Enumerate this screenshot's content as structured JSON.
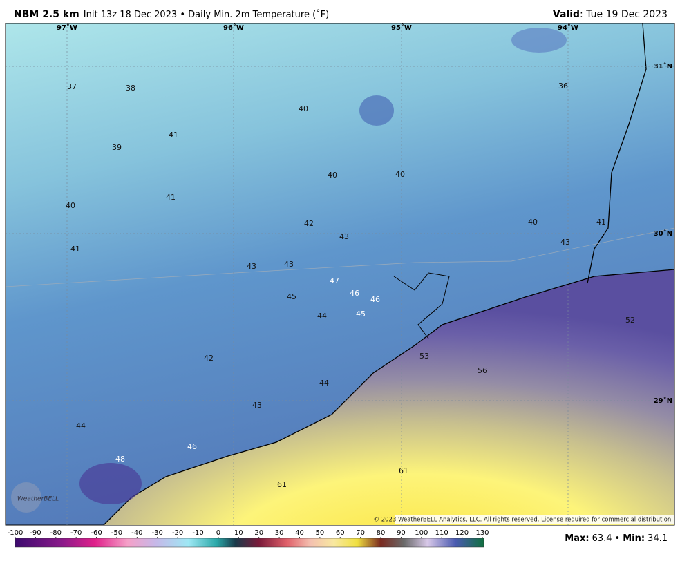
{
  "header": {
    "title": "NBM 2.5 km",
    "subtitle": "Init 13z 18 Dec 2023 • Daily Min. 2m Temperature (˚F)",
    "valid_label": "Valid",
    "valid": ": Tue 19 Dec 2023"
  },
  "map": {
    "lon_labels": [
      "97˚W",
      "96˚W",
      "95˚W",
      "94˚W"
    ],
    "lat_labels": [
      "31˚N",
      "30˚N",
      "29˚N"
    ],
    "points": [
      37,
      38,
      40,
      36,
      41,
      39,
      40,
      40,
      41,
      40,
      42,
      43,
      40,
      41,
      43,
      41,
      43,
      43,
      47,
      46,
      46,
      45,
      44,
      45,
      52,
      42,
      53,
      56,
      44,
      43,
      44,
      46,
      48,
      61,
      61
    ],
    "copyright": "© 2023 WeatherBELL Analytics, LLC. All rights reserved. License required for commercial distribution.",
    "logo": "WeatherBELL"
  },
  "colorbar": {
    "ticks": [
      -100,
      -90,
      -80,
      -70,
      -60,
      -50,
      -40,
      -30,
      -20,
      -10,
      0,
      10,
      20,
      30,
      40,
      50,
      60,
      70,
      80,
      90,
      100,
      110,
      120,
      130
    ]
  },
  "footer": {
    "max_label": "Max:",
    "max": 63.4,
    "sep": "•",
    "min_label": "Min:",
    "min": 34.1
  }
}
